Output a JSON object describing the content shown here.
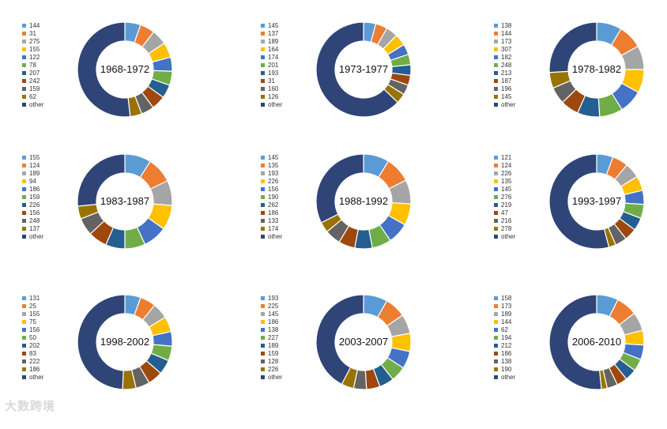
{
  "palette": [
    "#5b9bd5",
    "#ed7d31",
    "#a5a5a5",
    "#ffc000",
    "#4472c4",
    "#70ad47",
    "#255e91",
    "#9e480e",
    "#636363",
    "#997300",
    "#264478"
  ],
  "other_color": "#2f4577",
  "watermark": "大数跨境",
  "chart_data": [
    {
      "type": "pie",
      "title": "1968-1972",
      "legend_position": "left",
      "categories": [
        "144",
        "31",
        "275",
        "155",
        "122",
        "78",
        "207",
        "242",
        "159",
        "62",
        "other"
      ],
      "values": [
        5.4,
        5.0,
        5.2,
        5.2,
        4.8,
        4.8,
        4.6,
        4.8,
        4.4,
        4.0,
        51.8
      ]
    },
    {
      "type": "pie",
      "title": "1973-1977",
      "legend_position": "left",
      "categories": [
        "145",
        "137",
        "189",
        "164",
        "174",
        "201",
        "193",
        "31",
        "160",
        "126",
        "other"
      ],
      "values": [
        4.2,
        4.0,
        4.0,
        4.0,
        3.6,
        3.6,
        3.6,
        3.4,
        3.4,
        3.4,
        62.8
      ]
    },
    {
      "type": "pie",
      "title": "1978-1982",
      "legend_position": "left",
      "categories": [
        "138",
        "144",
        "173",
        "307",
        "182",
        "248",
        "213",
        "187",
        "196",
        "145",
        "other"
      ],
      "values": [
        8.6,
        8.2,
        8.2,
        8.0,
        8.0,
        8.0,
        7.6,
        6.2,
        5.8,
        5.4,
        26.0
      ]
    },
    {
      "type": "pie",
      "title": "1983-1987",
      "legend_position": "left",
      "categories": [
        "155",
        "124",
        "189",
        "94",
        "186",
        "159",
        "226",
        "156",
        "248",
        "137",
        "other"
      ],
      "values": [
        9.0,
        8.8,
        8.6,
        8.4,
        8.2,
        7.0,
        6.6,
        6.4,
        6.0,
        4.4,
        26.6
      ]
    },
    {
      "type": "pie",
      "title": "1988-1992",
      "legend_position": "left",
      "categories": [
        "145",
        "135",
        "193",
        "226",
        "156",
        "190",
        "262",
        "186",
        "133",
        "174",
        "other"
      ],
      "values": [
        8.8,
        8.8,
        8.2,
        7.4,
        7.2,
        6.6,
        6.0,
        5.6,
        5.4,
        3.6,
        32.4
      ]
    },
    {
      "type": "pie",
      "title": "1993-1997",
      "legend_position": "left",
      "categories": [
        "121",
        "124",
        "226",
        "135",
        "145",
        "276",
        "219",
        "47",
        "216",
        "278",
        "other"
      ],
      "values": [
        5.6,
        5.4,
        5.2,
        5.0,
        4.8,
        4.8,
        4.4,
        4.2,
        4.0,
        2.4,
        54.2
      ]
    },
    {
      "type": "pie",
      "title": "1998-2002",
      "legend_position": "left",
      "categories": [
        "131",
        "25",
        "155",
        "75",
        "156",
        "50",
        "202",
        "83",
        "222",
        "186",
        "other"
      ],
      "values": [
        5.4,
        5.4,
        5.4,
        5.2,
        5.0,
        5.0,
        5.0,
        5.0,
        4.8,
        4.6,
        49.2
      ]
    },
    {
      "type": "pie",
      "title": "2003-2007",
      "legend_position": "left",
      "categories": [
        "193",
        "225",
        "145",
        "186",
        "138",
        "227",
        "189",
        "159",
        "128",
        "226",
        "other"
      ],
      "values": [
        8.2,
        7.2,
        6.6,
        6.2,
        6.0,
        5.2,
        5.0,
        4.6,
        4.4,
        4.2,
        42.4
      ]
    },
    {
      "type": "pie",
      "title": "2006-2010",
      "legend_position": "left",
      "categories": [
        "158",
        "173",
        "189",
        "144",
        "62",
        "194",
        "212",
        "186",
        "138",
        "190",
        "other"
      ],
      "values": [
        7.4,
        7.2,
        6.4,
        5.0,
        5.0,
        4.2,
        4.0,
        3.6,
        3.6,
        2.0,
        51.6
      ]
    }
  ]
}
